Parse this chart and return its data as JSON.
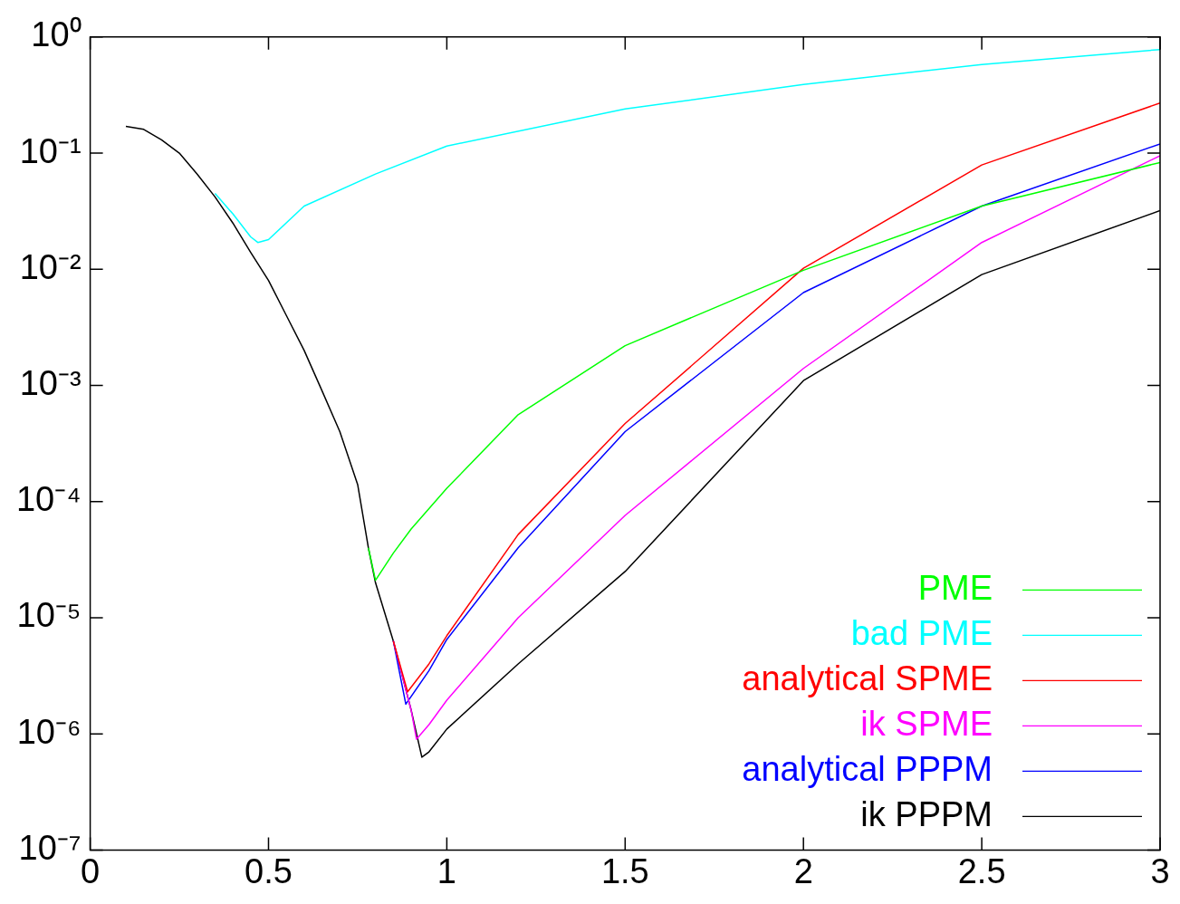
{
  "chart_data": {
    "type": "line",
    "log": "y",
    "legend": "bottom right",
    "grid": false,
    "marker": "none",
    "line_style": "solid",
    "xlim": [
      0,
      3
    ],
    "xticks": [
      0,
      0.5,
      1,
      1.5,
      2,
      2.5,
      3
    ],
    "ylim": [
      1e-07,
      1
    ],
    "yticks": [
      {
        "value": 1e-07,
        "label": "10⁻⁷"
      },
      {
        "value": 1e-06,
        "label": "10⁻⁶"
      },
      {
        "value": 1e-05,
        "label": "10⁻⁵"
      },
      {
        "value": 0.0001,
        "label": "10⁻⁴"
      },
      {
        "value": 0.001,
        "label": "10⁻³"
      },
      {
        "value": 0.01,
        "label": "10⁻²"
      },
      {
        "value": 0.1,
        "label": "10⁻¹"
      },
      {
        "value": 1,
        "label": "10⁰"
      }
    ],
    "series": [
      {
        "name": "PME",
        "color": "#00ff00",
        "x": [
          0.78,
          0.8,
          0.85,
          0.9,
          1,
          1.2,
          1.5,
          2,
          2.5,
          3
        ],
        "values": [
          4e-05,
          2.1e-05,
          3.6e-05,
          5.8e-05,
          0.00013,
          0.00056,
          0.0022,
          0.0098,
          0.035,
          0.083
        ]
      },
      {
        "name": "bad PME",
        "color": "#00ffff",
        "x": [
          0.35,
          0.4,
          0.45,
          0.47,
          0.5,
          0.6,
          0.8,
          1,
          1.5,
          2,
          2.5,
          3
        ],
        "values": [
          0.045,
          0.03,
          0.019,
          0.017,
          0.018,
          0.035,
          0.066,
          0.115,
          0.24,
          0.39,
          0.58,
          0.78
        ]
      },
      {
        "name": "analytical SPME",
        "color": "#ff0000",
        "x": [
          0.85,
          0.89,
          0.95,
          1,
          1.2,
          1.5,
          2,
          2.5,
          3
        ],
        "values": [
          6.3e-06,
          2.3e-06,
          4e-06,
          7e-06,
          5.2e-05,
          0.00047,
          0.0102,
          0.079,
          0.27
        ]
      },
      {
        "name": "ik SPME",
        "color": "#ff00ff",
        "x": [
          0.85,
          0.9,
          0.915,
          0.95,
          1,
          1.2,
          1.5,
          2,
          2.5,
          3
        ],
        "values": [
          6.3e-06,
          1.6e-06,
          9e-07,
          1.2e-06,
          1.95e-06,
          1e-05,
          7.6e-05,
          0.0014,
          0.017,
          0.095
        ]
      },
      {
        "name": "analytical PPPM",
        "color": "#0000ff",
        "x": [
          0.85,
          0.885,
          0.95,
          1,
          1.2,
          1.5,
          2,
          2.5,
          3
        ],
        "values": [
          6.3e-06,
          1.8e-06,
          3.5e-06,
          6.5e-06,
          4e-05,
          0.0004,
          0.0063,
          0.035,
          0.12
        ]
      },
      {
        "name": "ik PPPM",
        "color": "#000000",
        "x": [
          0.1,
          0.15,
          0.2,
          0.25,
          0.3,
          0.35,
          0.4,
          0.45,
          0.5,
          0.55,
          0.6,
          0.65,
          0.7,
          0.75,
          0.78,
          0.8,
          0.85,
          0.9,
          0.93,
          0.95,
          1,
          1.2,
          1.5,
          2,
          2.5,
          3
        ],
        "values": [
          0.17,
          0.16,
          0.13,
          0.1,
          0.066,
          0.042,
          0.025,
          0.014,
          0.008,
          0.004,
          0.002,
          0.0009,
          0.0004,
          0.00014,
          4e-05,
          2e-05,
          6.3e-06,
          1.6e-06,
          6.3e-07,
          7e-07,
          1.1e-06,
          4e-06,
          2.5e-05,
          0.0011,
          0.009,
          0.032
        ]
      }
    ]
  }
}
